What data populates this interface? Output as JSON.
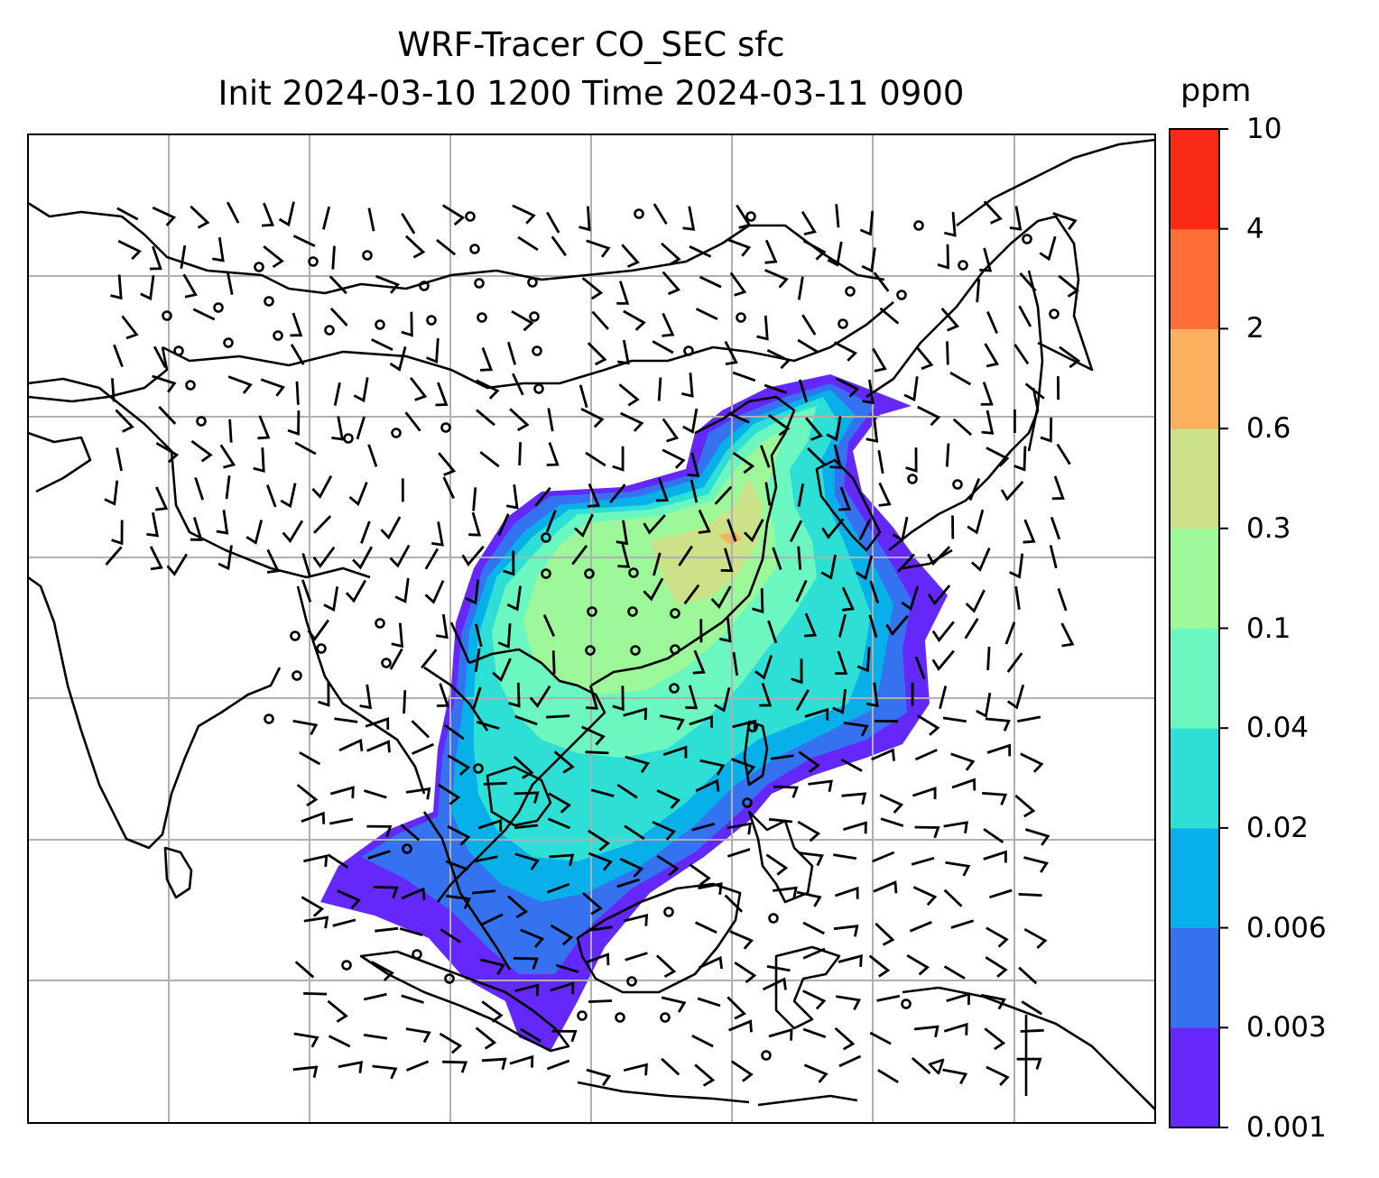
{
  "title": {
    "line1": "WRF-Tracer CO_SEC sfc",
    "line2": "Init 2024-03-10 1200 Time 2024-03-11 0900"
  },
  "colorbar": {
    "units": "ppm",
    "levels": [
      "0.001",
      "0.003",
      "0.006",
      "0.02",
      "0.04",
      "0.1",
      "0.3",
      "0.6",
      "2",
      "4",
      "10"
    ],
    "colors": [
      "#6428fa",
      "#3572f0",
      "#08b0ea",
      "#2edfd6",
      "#6cf7c0",
      "#9cf898",
      "#cde288",
      "#fbb05e",
      "#ff6e37",
      "#fa2a14"
    ]
  },
  "field": {
    "variable": "CO_SEC",
    "level": "sfc",
    "units": "ppm",
    "overlay": "wind barbs",
    "coastlines": true,
    "gridlines": true,
    "gridline_color": "#b0b0b0"
  }
}
